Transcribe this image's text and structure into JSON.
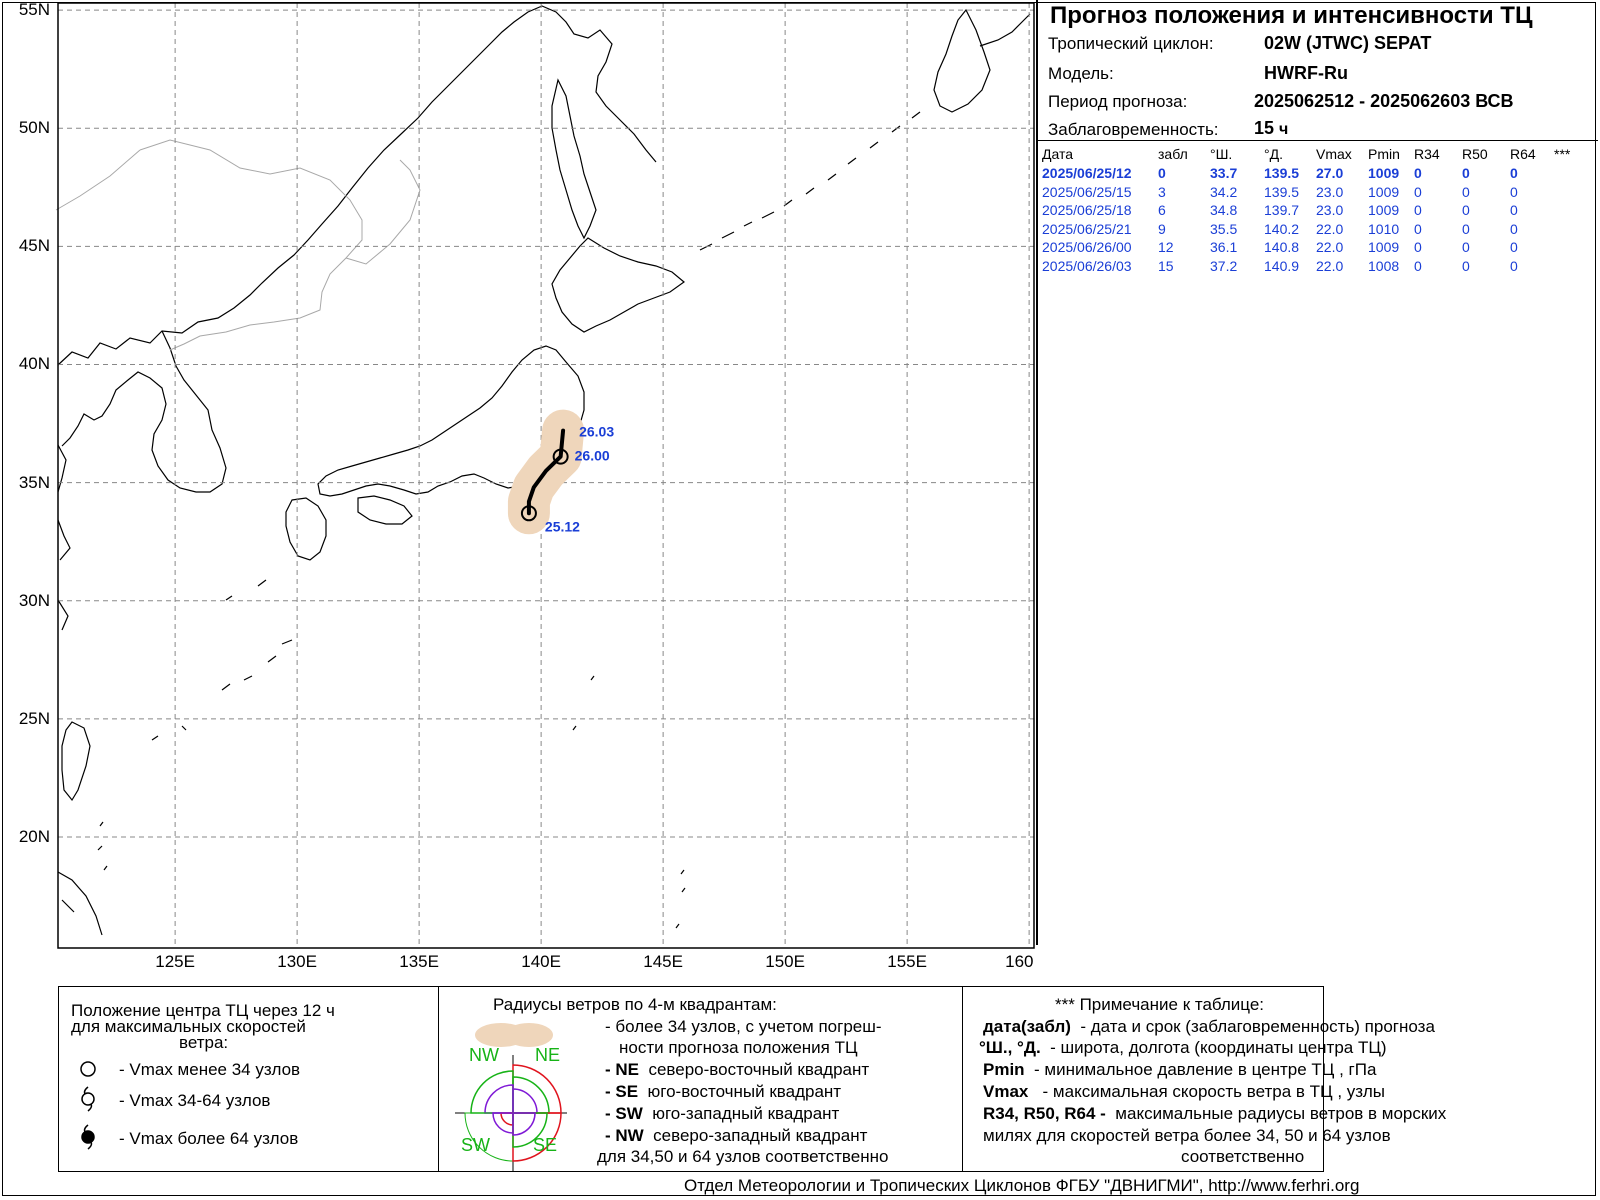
{
  "info": {
    "title": "Прогноз положения и интенсивности ТЦ",
    "cyclone_label": "Тропический циклон:",
    "cyclone_value": "02W (JTWC)  SEPAT",
    "model_label": "Модель:",
    "model_value": "HWRF-Ru",
    "period_label": "Период прогноза:",
    "period_value": "2025062512 - 2025062603 ВСВ",
    "lead_label": "Заблаговременность:",
    "lead_value": "15",
    "lead_unit": "ч"
  },
  "table": {
    "headers": [
      "Дата",
      "забл",
      "°Ш.",
      "°Д.",
      "Vmax",
      "Pmin",
      "R34",
      "R50",
      "R64",
      "***"
    ],
    "rows": [
      [
        "2025/06/25/12",
        "0",
        "33.7",
        "139.5",
        "27.0",
        "1009",
        "0",
        "0",
        "0"
      ],
      [
        "2025/06/25/15",
        "3",
        "34.2",
        "139.5",
        "23.0",
        "1009",
        "0",
        "0",
        "0"
      ],
      [
        "2025/06/25/18",
        "6",
        "34.8",
        "139.7",
        "23.0",
        "1009",
        "0",
        "0",
        "0"
      ],
      [
        "2025/06/25/21",
        "9",
        "35.5",
        "140.2",
        "22.0",
        "1010",
        "0",
        "0",
        "0"
      ],
      [
        "2025/06/26/00",
        "12",
        "36.1",
        "140.8",
        "22.0",
        "1009",
        "0",
        "0",
        "0"
      ],
      [
        "2025/06/26/03",
        "15",
        "37.2",
        "140.9",
        "22.0",
        "1008",
        "0",
        "0",
        "0"
      ]
    ]
  },
  "map": {
    "lat_labels": [
      "55N",
      "50N",
      "45N",
      "40N",
      "35N",
      "30N",
      "25N",
      "20N"
    ],
    "lon_labels": [
      "125E",
      "130E",
      "135E",
      "140E",
      "145E",
      "150E",
      "155E",
      "160"
    ],
    "lat_values": [
      55,
      50,
      45,
      40,
      35,
      30,
      25,
      20
    ],
    "lon_values": [
      125,
      130,
      135,
      140,
      145,
      150,
      155,
      160
    ],
    "extent": {
      "lon_min": 120.2,
      "lon_max": 160.2,
      "lat_min": 15.3,
      "lat_max": 55.3
    },
    "track": [
      {
        "lat": 33.7,
        "lon": 139.5
      },
      {
        "lat": 34.2,
        "lon": 139.5
      },
      {
        "lat": 34.8,
        "lon": 139.7
      },
      {
        "lat": 35.5,
        "lon": 140.2
      },
      {
        "lat": 36.1,
        "lon": 140.8
      },
      {
        "lat": 37.2,
        "lon": 140.9
      }
    ],
    "track_labels": [
      {
        "text": "25.12",
        "lat": 33.7,
        "lon": 139.5
      },
      {
        "text": "26.00",
        "lat": 36.1,
        "lon": 140.8
      },
      {
        "text": "26.03",
        "lat": 37.2,
        "lon": 140.9
      }
    ],
    "colors": {
      "uncertainty": "#efd6bb",
      "track": "#000000",
      "labels": "#1a3ed6",
      "grid": "#888888",
      "border": "#a8a8a8"
    }
  },
  "legend": {
    "box1": {
      "title1": "Положение центра ТЦ через 12 ч",
      "title2": "для максимальных скоростей",
      "title3": "ветра:",
      "item1": "- Vmax   менее 34 узлов",
      "item2": "- Vmax   34-64 узлов",
      "item3": "- Vmax   более 64 узлов"
    },
    "box2": {
      "title": "Радиусы ветров по 4-м квадрантам:",
      "line1": "- более 34 узлов, с учетом погреш-",
      "line2": "ности прогноза положения ТЦ",
      "ne_code": "- NE",
      "ne_text": "северо-восточный квадрант",
      "se_code": "- SE",
      "se_text": "юго-восточный квадрант",
      "sw_code": "- SW",
      "sw_text": "юго-западный квадрант",
      "nw_code": "- NW",
      "nw_text": "северо-западный квадрант",
      "last": "для 34,50 и 64 узлов соответственно",
      "q_nw": "NW",
      "q_ne": "NE",
      "q_sw": "SW",
      "q_se": "SE"
    },
    "box3": {
      "title": "*** Примечание к таблице:",
      "l1_code": "дата(забл)",
      "l1_text": "- дата и срок (заблаговременность) прогноза",
      "l2_code": "°Ш., °Д.",
      "l2_text": "- широта, долгота   (координаты центра ТЦ)",
      "l3_code": "Pmin",
      "l3_text": "- минимальное давление в центре ТЦ , гПа",
      "l4_code": "Vmax",
      "l4_text": "-  максимальная скорость ветра в ТЦ , узлы",
      "l5_code": "R34, R50, R64 -",
      "l5_text": "максимальные радиусы ветров в морских",
      "l6": "милях для скоростей ветра более 34, 50 и 64 узлов",
      "l7": "соответственно"
    }
  },
  "footer": "Отдел Метеорологии и Тропических Циклонов ФГБУ \"ДВНИГМИ\",  http://www.ferhri.org"
}
